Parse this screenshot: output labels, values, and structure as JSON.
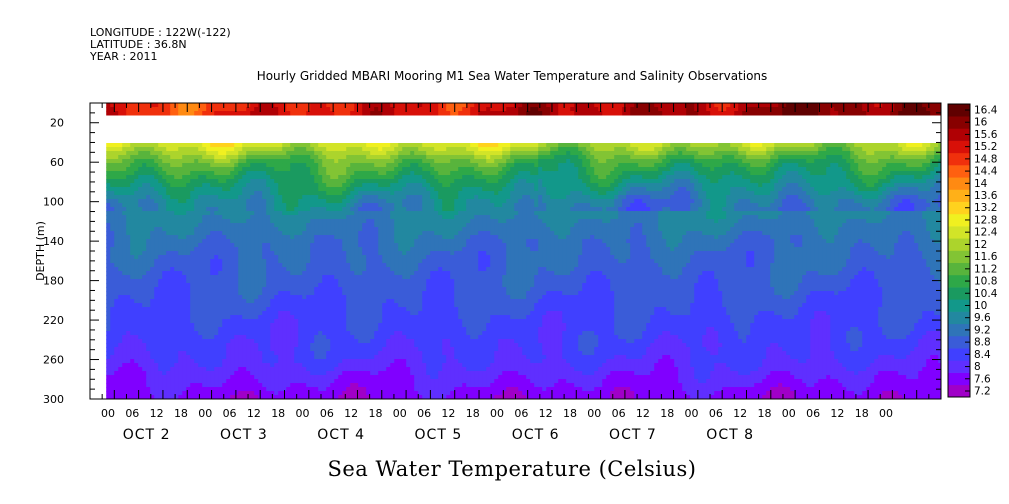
{
  "header": {
    "lines": [
      "LONGITUDE : 122W(-122)",
      "LATITUDE : 36.8N",
      "YEAR : 2011"
    ]
  },
  "chart_data": {
    "type": "heatmap",
    "title": "Hourly Gridded MBARI Mooring M1 Sea Water Temperature and Salinity Observations",
    "xlabel": "Sea Water Temperature (Celsius)",
    "ylabel": "DEPTH (m)",
    "x_hours_range": [
      0,
      210
    ],
    "x_ticks": [
      "00",
      "06",
      "12",
      "18",
      "00",
      "06",
      "12",
      "18",
      "00",
      "06",
      "12",
      "18",
      "00",
      "06",
      "12",
      "18",
      "00",
      "06",
      "12",
      "18",
      "00",
      "06",
      "12",
      "18",
      "00",
      "06",
      "12",
      "18",
      "00",
      "06",
      "12",
      "18",
      "00"
    ],
    "x_day_labels": [
      "OCT 2",
      "OCT 3",
      "OCT 4",
      "OCT 5",
      "OCT 6",
      "OCT 7",
      "OCT 8"
    ],
    "ylim": [
      0,
      300
    ],
    "y_inverted": true,
    "y_ticks": [
      20,
      60,
      100,
      140,
      180,
      220,
      260,
      300
    ],
    "data_start_hour": 4,
    "missing_depth_band": [
      12,
      40
    ],
    "colorbar": {
      "labels": [
        "16.4",
        "16",
        "15.6",
        "15.2",
        "14.8",
        "14.4",
        "14",
        "13.6",
        "13.2",
        "12.8",
        "12.4",
        "12",
        "11.6",
        "11.2",
        "10.8",
        "10.4",
        "10",
        "9.6",
        "9.2",
        "8.8",
        "8.4",
        "8",
        "7.6",
        "7.2"
      ],
      "range": [
        7.0,
        16.6
      ],
      "colors": [
        "#a000c8",
        "#8000ff",
        "#5f2fff",
        "#4040ff",
        "#3a5cd8",
        "#2f74b8",
        "#2288a0",
        "#12988a",
        "#1a9a60",
        "#2ea848",
        "#58b43c",
        "#82c434",
        "#acd42c",
        "#d2e428",
        "#f0f020",
        "#ffd21e",
        "#ffb018",
        "#ff8a12",
        "#ff6010",
        "#f0300c",
        "#d81008",
        "#b00004",
        "#880000",
        "#600000"
      ]
    },
    "depth_profile": [
      {
        "depth": 0,
        "temp": 14.6
      },
      {
        "depth": 10,
        "temp": 14.8
      },
      {
        "depth": 40,
        "temp": 12.6
      },
      {
        "depth": 60,
        "temp": 11.2
      },
      {
        "depth": 80,
        "temp": 10.4
      },
      {
        "depth": 100,
        "temp": 9.7
      },
      {
        "depth": 140,
        "temp": 9.1
      },
      {
        "depth": 180,
        "temp": 8.8
      },
      {
        "depth": 220,
        "temp": 8.5
      },
      {
        "depth": 260,
        "temp": 8.2
      },
      {
        "depth": 300,
        "temp": 7.5
      }
    ],
    "grid": false,
    "legend": "right"
  }
}
